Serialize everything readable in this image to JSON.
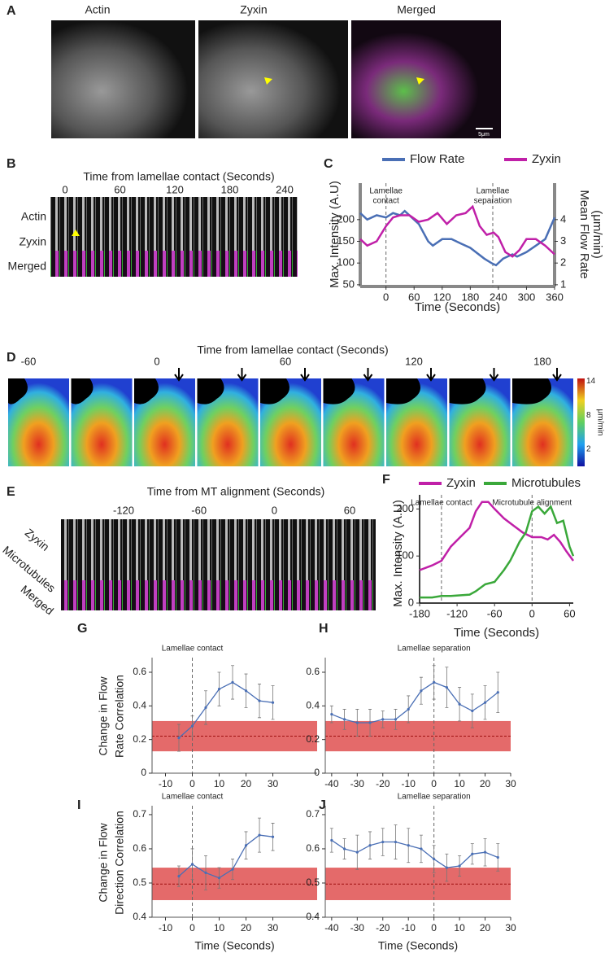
{
  "image_panels": {
    "a": {
      "letter": "A",
      "titles": [
        "Actin",
        "Zyxin",
        "Merged"
      ],
      "scale_bar": "5μm"
    },
    "b": {
      "letter": "B",
      "title": "Time from lamellae contact (Seconds)",
      "ticks": [
        0,
        60,
        120,
        180,
        240
      ],
      "rows": [
        "Actin",
        "Zyxin",
        "Merged"
      ]
    },
    "d": {
      "letter": "D",
      "title": "Time from lamellae contact (Seconds)",
      "ticks": [
        -60,
        0,
        60,
        120,
        180
      ],
      "colorbar": {
        "ticks": [
          14,
          8,
          2
        ],
        "lim": [
          -1,
          14.5
        ],
        "label": "μm/min"
      }
    },
    "e": {
      "letter": "E",
      "title": "Time from MT alignment (Seconds)",
      "ticks": [
        -120,
        -60,
        0,
        60
      ],
      "rows": [
        "Zyxin",
        "Microtubules",
        "Merged"
      ]
    }
  },
  "chart_data": [
    {
      "type": "line",
      "panel": "C",
      "xlabel": "Time (Seconds)",
      "ylabel": "Max. Intensity (A.U)",
      "y2label": [
        "Mean Flow Rate",
        "(μm/min)"
      ],
      "xlim": [
        -55,
        360
      ],
      "xticks": [
        0,
        60,
        120,
        180,
        240,
        300,
        360
      ],
      "ylim": [
        46,
        284
      ],
      "yticks": [
        50,
        100,
        150,
        200
      ],
      "y2lim": [
        0.92,
        5.68
      ],
      "y2ticks": [
        1,
        2,
        3,
        4
      ],
      "markers": [
        {
          "x": 0,
          "label": [
            "Lamellae",
            "contact"
          ]
        },
        {
          "x": 228,
          "label": [
            "Lamellae",
            "separation"
          ]
        }
      ],
      "series": [
        {
          "name": "Flow Rate",
          "color": "#4a6fb5",
          "axis": "y2",
          "x": [
            -55,
            -40,
            -20,
            0,
            15,
            30,
            40,
            55,
            70,
            90,
            100,
            120,
            140,
            160,
            180,
            210,
            225,
            235,
            250,
            270,
            280,
            300,
            320,
            340,
            360
          ],
          "values": [
            4.3,
            4.0,
            4.2,
            4.1,
            4.3,
            4.2,
            4.4,
            4.1,
            3.8,
            3.0,
            2.8,
            3.1,
            3.1,
            2.9,
            2.7,
            2.2,
            2.0,
            1.9,
            2.2,
            2.4,
            2.3,
            2.5,
            2.8,
            3.1,
            4.1
          ]
        },
        {
          "name": "Zyxin",
          "color": "#c020a8",
          "x": [
            -55,
            -40,
            -20,
            0,
            15,
            30,
            50,
            70,
            90,
            110,
            130,
            150,
            170,
            185,
            200,
            215,
            230,
            240,
            255,
            270,
            285,
            300,
            320,
            340,
            360
          ],
          "values": [
            155,
            140,
            150,
            185,
            205,
            210,
            210,
            195,
            200,
            215,
            190,
            210,
            215,
            230,
            185,
            165,
            170,
            160,
            125,
            115,
            130,
            155,
            155,
            140,
            120
          ]
        }
      ]
    },
    {
      "type": "line",
      "panel": "F",
      "xlabel": "Time (Seconds)",
      "ylabel": "Max. Intensity (A.U)",
      "xlim": [
        -180,
        66
      ],
      "xticks": [
        -180,
        -120,
        -60,
        0,
        60
      ],
      "ylim": [
        0,
        230
      ],
      "yticks": [
        0,
        100,
        200
      ],
      "markers": [
        {
          "x": -145,
          "label": [
            "Lamellae contact"
          ]
        },
        {
          "x": 0,
          "label": [
            "Microtubule alignment"
          ]
        }
      ],
      "series": [
        {
          "name": "Zyxin",
          "color": "#c020a8",
          "x": [
            -180,
            -160,
            -145,
            -130,
            -115,
            -100,
            -90,
            -80,
            -70,
            -60,
            -45,
            -30,
            -15,
            0,
            15,
            25,
            35,
            45,
            55,
            66
          ],
          "values": [
            70,
            80,
            90,
            120,
            140,
            160,
            195,
            215,
            215,
            200,
            180,
            165,
            150,
            140,
            140,
            135,
            145,
            130,
            110,
            90
          ]
        },
        {
          "name": "Microtubules",
          "color": "#3aa83a",
          "x": [
            -180,
            -160,
            -145,
            -130,
            -100,
            -90,
            -75,
            -60,
            -45,
            -35,
            -20,
            -10,
            0,
            10,
            20,
            30,
            40,
            50,
            60,
            66
          ],
          "values": [
            12,
            12,
            15,
            15,
            18,
            25,
            40,
            45,
            70,
            90,
            130,
            150,
            195,
            205,
            190,
            205,
            170,
            175,
            120,
            100
          ]
        }
      ]
    },
    {
      "type": "line",
      "panel": "G",
      "ylabel": [
        "Change in Flow",
        "Rate Correlation"
      ],
      "xlim": [
        -15,
        46.5
      ],
      "xticks": [
        -10,
        0,
        10,
        20,
        30
      ],
      "ylim": [
        0,
        0.687
      ],
      "yticks": [
        0,
        0.2,
        0.4,
        0.6
      ],
      "band": [
        0.13,
        0.31
      ],
      "band_mean": 0.22,
      "markers": [
        {
          "x": 0,
          "label": [
            "Lamellae contact"
          ]
        }
      ],
      "series": [
        {
          "color": "#4a6fb5",
          "x": [
            -5,
            0,
            5,
            10,
            15,
            20,
            25,
            30
          ],
          "values": [
            0.21,
            0.28,
            0.39,
            0.5,
            0.54,
            0.49,
            0.43,
            0.42
          ],
          "errors": [
            0.08,
            0.06,
            0.1,
            0.1,
            0.1,
            0.1,
            0.1,
            0.1
          ]
        }
      ]
    },
    {
      "type": "line",
      "panel": "H",
      "xlim": [
        -42.5,
        30
      ],
      "xticks": [
        -40,
        -30,
        -20,
        -10,
        0,
        10,
        20,
        30
      ],
      "ylim": [
        0,
        0.687
      ],
      "yticks": [
        0,
        0.2,
        0.4,
        0.6
      ],
      "band": [
        0.13,
        0.31
      ],
      "band_mean": 0.22,
      "markers": [
        {
          "x": 0,
          "label": [
            "Lamellae separation"
          ]
        }
      ],
      "series": [
        {
          "color": "#4a6fb5",
          "x": [
            -40,
            -35,
            -30,
            -25,
            -20,
            -15,
            -10,
            -5,
            0,
            5,
            10,
            15,
            20,
            25
          ],
          "values": [
            0.35,
            0.32,
            0.3,
            0.3,
            0.32,
            0.32,
            0.38,
            0.49,
            0.54,
            0.51,
            0.41,
            0.37,
            0.42,
            0.48
          ],
          "errors": [
            0.05,
            0.06,
            0.08,
            0.08,
            0.05,
            0.06,
            0.08,
            0.08,
            0.1,
            0.12,
            0.1,
            0.1,
            0.1,
            0.12
          ]
        }
      ]
    },
    {
      "type": "line",
      "panel": "I",
      "xlabel": "Time (Seconds)",
      "ylabel": [
        "Change in Flow",
        "Direction Correlation"
      ],
      "xlim": [
        -15,
        46.5
      ],
      "xticks": [
        -10,
        0,
        10,
        20,
        30
      ],
      "ylim": [
        0.4,
        0.726
      ],
      "yticks": [
        0.4,
        0.5,
        0.6,
        0.7
      ],
      "band": [
        0.45,
        0.545
      ],
      "band_mean": 0.497,
      "markers": [
        {
          "x": 0,
          "label": [
            "Lamellae contact"
          ]
        }
      ],
      "series": [
        {
          "color": "#4a6fb5",
          "x": [
            -5,
            0,
            5,
            10,
            15,
            20,
            25,
            30
          ],
          "values": [
            0.52,
            0.555,
            0.53,
            0.515,
            0.54,
            0.61,
            0.64,
            0.635
          ],
          "errors": [
            0.03,
            0.045,
            0.05,
            0.03,
            0.03,
            0.04,
            0.05,
            0.04
          ]
        }
      ]
    },
    {
      "type": "line",
      "panel": "J",
      "xlabel": "Time (Seconds)",
      "xlim": [
        -42.5,
        30
      ],
      "xticks": [
        -40,
        -30,
        -20,
        -10,
        0,
        10,
        20,
        30
      ],
      "ylim": [
        0.4,
        0.726
      ],
      "yticks": [
        0.4,
        0.5,
        0.6,
        0.7
      ],
      "band": [
        0.45,
        0.545
      ],
      "band_mean": 0.497,
      "markers": [
        {
          "x": 0,
          "label": [
            "Lamellae separation"
          ]
        }
      ],
      "series": [
        {
          "color": "#4a6fb5",
          "x": [
            -40,
            -35,
            -30,
            -25,
            -20,
            -15,
            -10,
            -5,
            0,
            5,
            10,
            15,
            20,
            25
          ],
          "values": [
            0.625,
            0.6,
            0.59,
            0.61,
            0.62,
            0.62,
            0.61,
            0.6,
            0.57,
            0.545,
            0.55,
            0.585,
            0.59,
            0.575
          ],
          "errors": [
            0.035,
            0.03,
            0.05,
            0.04,
            0.04,
            0.05,
            0.05,
            0.04,
            0.04,
            0.04,
            0.03,
            0.03,
            0.04,
            0.04
          ]
        }
      ]
    }
  ]
}
